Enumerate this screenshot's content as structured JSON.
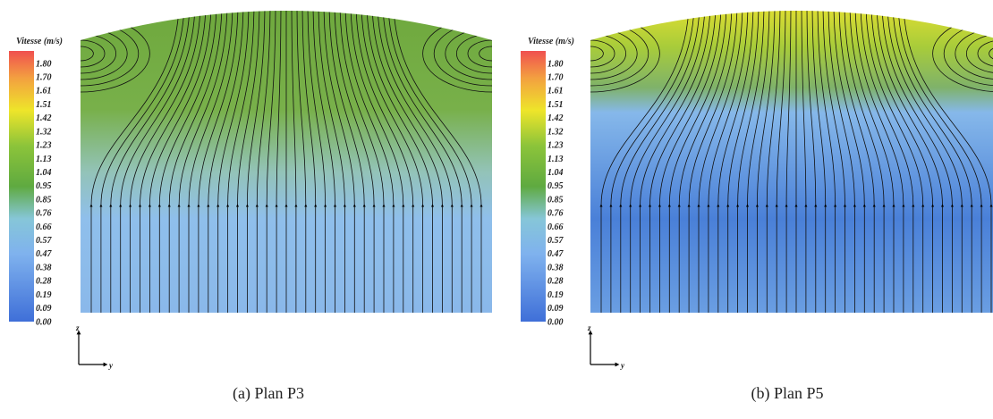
{
  "panels": [
    {
      "colorbar": {
        "title": "Vitesse (m/s)",
        "ticks": [
          "1.80",
          "1.70",
          "1.61",
          "1.51",
          "1.42",
          "1.32",
          "1.23",
          "1.13",
          "1.04",
          "0.95",
          "0.85",
          "0.76",
          "0.66",
          "0.57",
          "0.47",
          "0.38",
          "0.28",
          "0.19",
          "0.09",
          "0.00"
        ]
      },
      "axes": {
        "vertical": "z",
        "horizontal": "y"
      },
      "caption": "(a) Plan P3"
    },
    {
      "colorbar": {
        "title": "Vitesse (m/s)",
        "ticks": [
          "1.80",
          "1.70",
          "1.61",
          "1.51",
          "1.42",
          "1.32",
          "1.23",
          "1.13",
          "1.04",
          "0.95",
          "0.85",
          "0.76",
          "0.66",
          "0.57",
          "0.47",
          "0.38",
          "0.28",
          "0.19",
          "0.09",
          "0.00"
        ]
      },
      "axes": {
        "vertical": "z",
        "horizontal": "y"
      },
      "caption": "(b) Plan P5"
    }
  ]
}
